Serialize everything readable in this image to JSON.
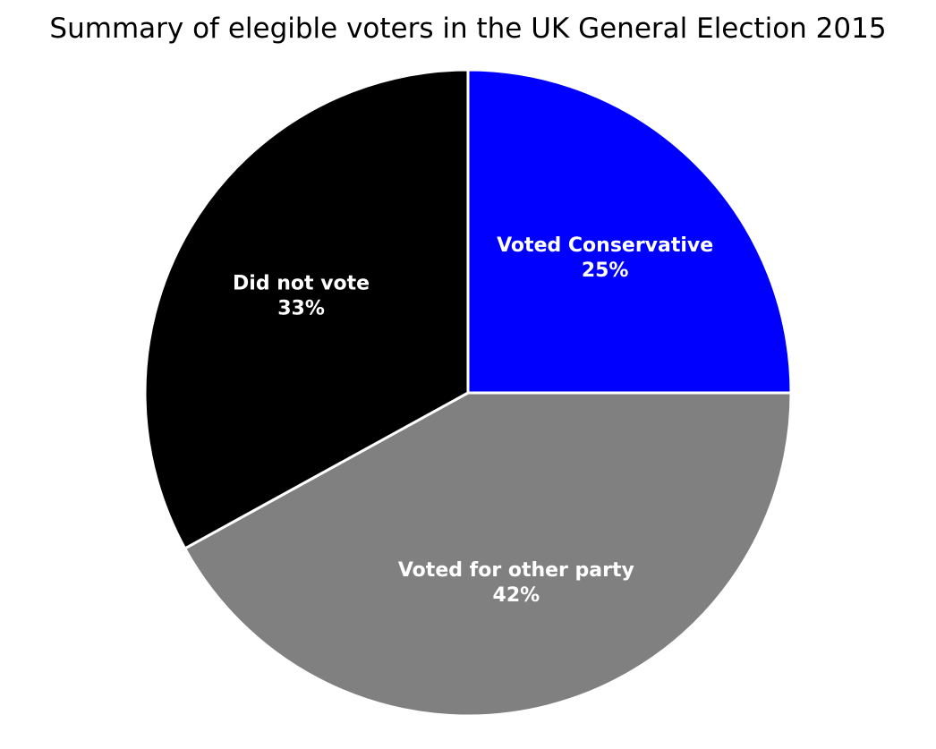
{
  "chart_data": {
    "type": "pie",
    "title": "Summary of elegible voters in the UK General Election 2015",
    "slices": [
      {
        "label": "Voted Conservative",
        "value": 25,
        "display": "25%",
        "color": "#0000ff"
      },
      {
        "label": "Voted for other party",
        "value": 42,
        "display": "42%",
        "color": "#808080"
      },
      {
        "label": "Did not vote",
        "value": 33,
        "display": "33%",
        "color": "#000000"
      }
    ],
    "start_angle_deg": 90,
    "direction": "clockwise",
    "edge_color": "#ffffff",
    "label_color": "#ffffff",
    "legend": "none"
  }
}
